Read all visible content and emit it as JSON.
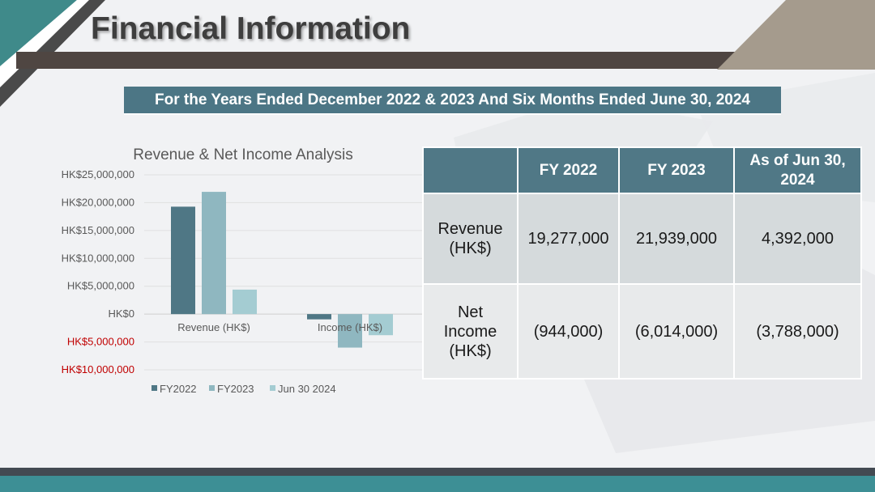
{
  "page": {
    "title": "Financial Information",
    "subtitle": "For the Years Ended December 2022 & 2023 And Six Months Ended June 30, 2024"
  },
  "colors": {
    "banner": "#4c7685",
    "fy2022": "#4f7785",
    "fy2023": "#8fb7c0",
    "jun2024": "#a4ccd2",
    "negative_tick": "#c00000",
    "table_header": "#507886",
    "table_cell": "#d5dadc"
  },
  "chart_data": {
    "type": "bar",
    "title": "Revenue & Net Income Analysis",
    "categories": [
      "Revenue (HK$)",
      "Income (HK$)"
    ],
    "series": [
      {
        "name": "FY2022",
        "values": [
          19277000,
          -944000
        ]
      },
      {
        "name": "FY2023",
        "values": [
          21939000,
          -6014000
        ]
      },
      {
        "name": "Jun 30 2024",
        "values": [
          4392000,
          -3788000
        ]
      }
    ],
    "ylim": [
      -10000000,
      25000000
    ],
    "yticks": [
      {
        "value": 25000000,
        "label": "HK$25,000,000",
        "negative": false
      },
      {
        "value": 20000000,
        "label": "HK$20,000,000",
        "negative": false
      },
      {
        "value": 15000000,
        "label": "HK$15,000,000",
        "negative": false
      },
      {
        "value": 10000000,
        "label": "HK$10,000,000",
        "negative": false
      },
      {
        "value": 5000000,
        "label": "HK$5,000,000",
        "negative": false
      },
      {
        "value": 0,
        "label": "HK$0",
        "negative": false
      },
      {
        "value": -5000000,
        "label": "HK$5,000,000",
        "negative": true
      },
      {
        "value": -10000000,
        "label": "HK$10,000,000",
        "negative": true
      }
    ],
    "grid": true,
    "legend_position": "bottom",
    "xlabel": "",
    "ylabel": ""
  },
  "table": {
    "headers": [
      "",
      "FY 2022",
      "FY 2023",
      "As of Jun 30, 2024"
    ],
    "rows": [
      {
        "label": "Revenue (HK$)",
        "values": [
          "19,277,000",
          "21,939,000",
          "4,392,000"
        ]
      },
      {
        "label": "Net Income (HK$)",
        "values": [
          "(944,000)",
          "(6,014,000)",
          "(3,788,000)"
        ]
      }
    ]
  }
}
